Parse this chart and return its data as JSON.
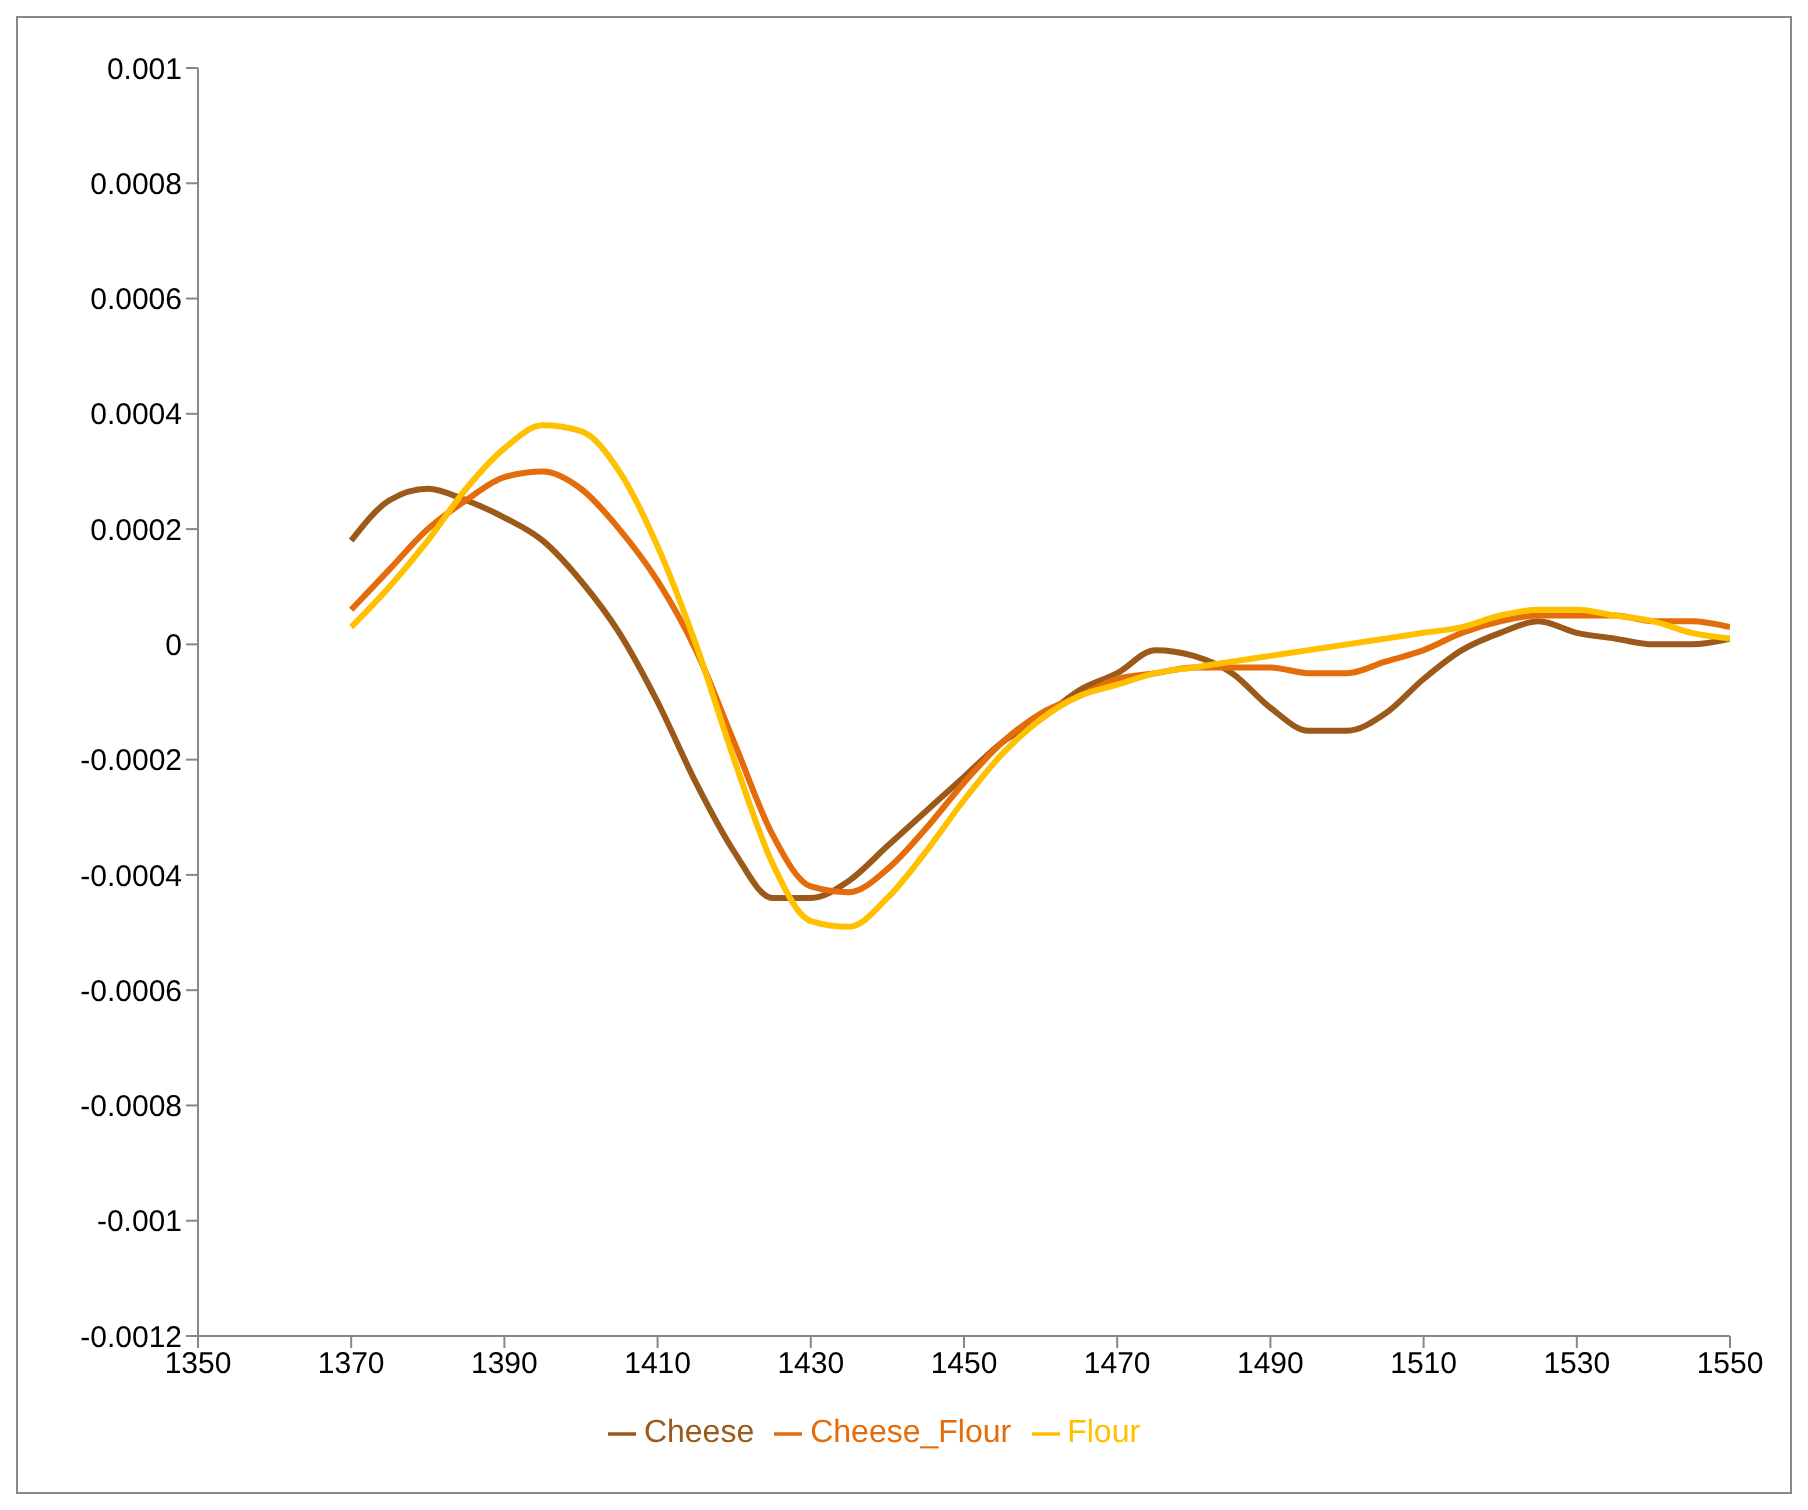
{
  "chart_data": {
    "type": "line",
    "x": [
      1370,
      1375,
      1380,
      1385,
      1390,
      1395,
      1400,
      1405,
      1410,
      1415,
      1420,
      1425,
      1430,
      1435,
      1440,
      1445,
      1450,
      1455,
      1460,
      1465,
      1470,
      1475,
      1480,
      1485,
      1490,
      1495,
      1500,
      1505,
      1510,
      1515,
      1520,
      1525,
      1530,
      1535,
      1540,
      1545,
      1550
    ],
    "series": [
      {
        "name": "Cheese",
        "color": "#9c5a1a",
        "values": [
          0.00018,
          0.00025,
          0.00027,
          0.00025,
          0.00022,
          0.00018,
          0.00011,
          2e-05,
          -0.0001,
          -0.00024,
          -0.00036,
          -0.00044,
          -0.00044,
          -0.00041,
          -0.00035,
          -0.00029,
          -0.00023,
          -0.00017,
          -0.00013,
          -8e-05,
          -5e-05,
          -1e-05,
          -2e-05,
          -5e-05,
          -0.00011,
          -0.00015,
          -0.00015,
          -0.00012,
          -6e-05,
          -1e-05,
          2e-05,
          4e-05,
          2e-05,
          1e-05,
          0,
          0,
          1e-05
        ]
      },
      {
        "name": "Cheese_Flour",
        "color": "#e46c0a",
        "values": [
          6e-05,
          0.00013,
          0.0002,
          0.00025,
          0.00029,
          0.0003,
          0.00027,
          0.0002,
          0.00011,
          -1e-05,
          -0.00017,
          -0.00033,
          -0.00042,
          -0.00043,
          -0.00039,
          -0.00032,
          -0.00024,
          -0.00017,
          -0.00012,
          -9e-05,
          -6e-05,
          -5e-05,
          -4e-05,
          -4e-05,
          -4e-05,
          -5e-05,
          -5e-05,
          -3e-05,
          -1e-05,
          2e-05,
          4e-05,
          5e-05,
          5e-05,
          5e-05,
          4e-05,
          4e-05,
          3e-05
        ]
      },
      {
        "name": "Flour",
        "color": "#ffc000",
        "values": [
          3e-05,
          0.0001,
          0.00018,
          0.00027,
          0.00034,
          0.00038,
          0.00037,
          0.0003,
          0.00017,
          0,
          -0.0002,
          -0.00038,
          -0.00048,
          -0.00049,
          -0.00044,
          -0.00036,
          -0.00027,
          -0.00019,
          -0.00013,
          -9e-05,
          -7e-05,
          -5e-05,
          -4e-05,
          -3e-05,
          -2e-05,
          -1e-05,
          0,
          1e-05,
          2e-05,
          3e-05,
          5e-05,
          6e-05,
          6e-05,
          5e-05,
          4e-05,
          2e-05,
          1e-05
        ]
      }
    ],
    "xlim": [
      1350,
      1550
    ],
    "xticks": [
      1350,
      1370,
      1390,
      1410,
      1430,
      1450,
      1470,
      1490,
      1510,
      1530,
      1550
    ],
    "ylim": [
      -0.0012,
      0.001
    ],
    "yticks": [
      -0.0012,
      -0.001,
      -0.0008,
      -0.0006,
      -0.0004,
      -0.0002,
      0,
      0.0002,
      0.0004,
      0.0006,
      0.0008,
      0.001
    ],
    "grid": false,
    "legend": "bottom",
    "marker": "none",
    "line_style": "solid"
  }
}
